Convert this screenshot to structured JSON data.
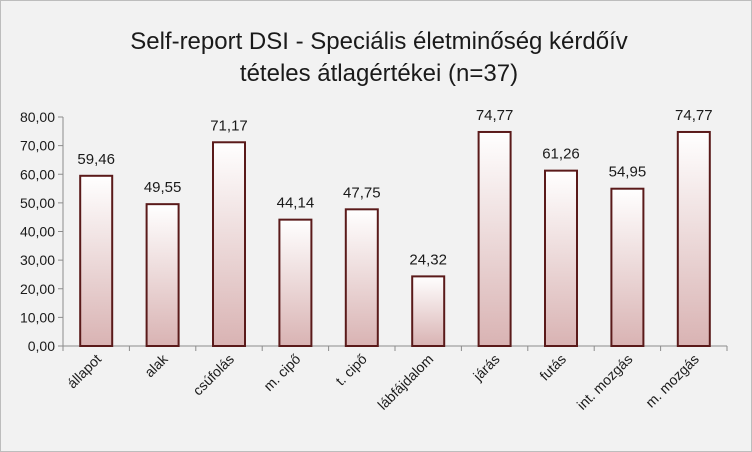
{
  "chart_data": {
    "type": "bar",
    "title_lines": [
      "Self-report  DSI - Speciális  életminőség  kérdőív",
      "tételes  átlagértékei  (n=37)"
    ],
    "categories": [
      "állapot",
      "alak",
      "csúfolás",
      "m. cipő",
      "t. cipő",
      "lábfájdalom",
      "járás",
      "futás",
      "int. mozgás",
      "m. mozgás"
    ],
    "values": [
      59.46,
      49.55,
      71.17,
      44.14,
      47.75,
      24.32,
      74.77,
      61.26,
      54.95,
      74.77
    ],
    "value_labels": [
      "59,46",
      "49,55",
      "71,17",
      "44,14",
      "47,75",
      "24,32",
      "74,77",
      "61,26",
      "54,95",
      "74,77"
    ],
    "y_ticks": [
      "0,00",
      "10,00",
      "20,00",
      "30,00",
      "40,00",
      "50,00",
      "60,00",
      "70,00",
      "80,00"
    ],
    "ylim": [
      0,
      80
    ],
    "xlabel": "",
    "ylabel": "",
    "grid": false,
    "legend": "none",
    "colors": {
      "bar_top": "#ffffff",
      "bar_bottom": "#d9b3b3",
      "bar_stroke": "#5a1a1a",
      "axis": "#8c8c8c",
      "background": "#f2f2f2"
    }
  }
}
